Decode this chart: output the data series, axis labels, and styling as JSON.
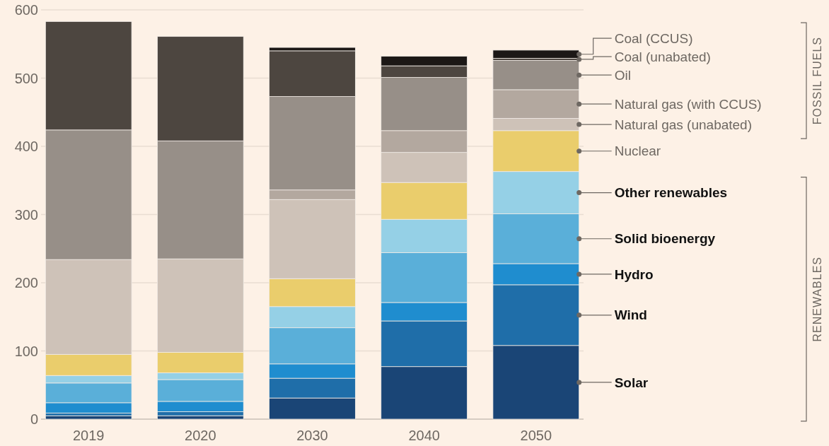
{
  "chart_data": {
    "type": "bar",
    "stacked": true,
    "categories": [
      "2019",
      "2020",
      "2030",
      "2040",
      "2050"
    ],
    "ylim": [
      0,
      600
    ],
    "yticks": [
      0,
      100,
      200,
      300,
      400,
      500,
      600
    ],
    "grid": "y",
    "legend": "right",
    "annotations": [
      "FOSSIL FUELS",
      "RENEWABLES"
    ],
    "series": [
      {
        "name": "Solar",
        "color": "#1a4576",
        "values": [
          5,
          5,
          31,
          77,
          108
        ]
      },
      {
        "name": "Wind",
        "color": "#1f6ea9",
        "values": [
          4,
          6,
          29,
          67,
          89
        ]
      },
      {
        "name": "Hydro",
        "color": "#1f8dcf",
        "values": [
          15,
          15,
          21,
          27,
          31
        ]
      },
      {
        "name": "Solid bioenergy",
        "color": "#5aafd9",
        "values": [
          29,
          32,
          53,
          73,
          73
        ]
      },
      {
        "name": "Other renewables",
        "color": "#95d0e6",
        "values": [
          11,
          10,
          31,
          49,
          62
        ]
      },
      {
        "name": "Nuclear",
        "color": "#eacd6c",
        "values": [
          31,
          30,
          41,
          54,
          60
        ]
      },
      {
        "name": "Natural gas (unabated)",
        "color": "#cec2b8",
        "values": [
          139,
          137,
          116,
          44,
          18
        ]
      },
      {
        "name": "Natural gas (with CCUS)",
        "color": "#b3a89f",
        "values": [
          0,
          0,
          14,
          32,
          42
        ]
      },
      {
        "name": "Oil",
        "color": "#978f88",
        "values": [
          190,
          173,
          137,
          78,
          43
        ]
      },
      {
        "name": "Coal (unabated)",
        "color": "#4d4640",
        "values": [
          159,
          153,
          67,
          17,
          3
        ]
      },
      {
        "name": "Coal (CCUS)",
        "color": "#1c1816",
        "values": [
          0,
          0,
          5,
          14,
          12
        ]
      }
    ]
  }
}
